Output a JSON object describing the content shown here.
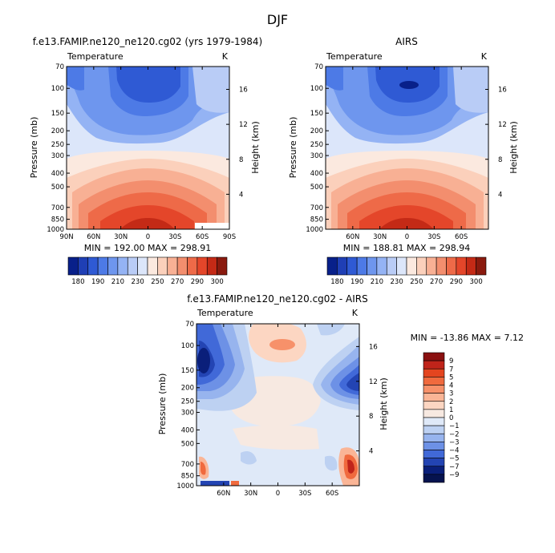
{
  "page_title": "DJF",
  "chart_data": [
    {
      "type": "heatmap",
      "title": "f.e13.FAMIP.ne120_ne120.cg02 (yrs 1979-1984)",
      "left_string": "Temperature",
      "right_string": "K",
      "xlabel": "",
      "ylabel": "Pressure (mb)",
      "y2label": "Height (km)",
      "x_ticks": [
        "90N",
        "60N",
        "30N",
        "0",
        "30S",
        "60S",
        "90S"
      ],
      "y_ticks": [
        "70",
        "100",
        "150",
        "200",
        "250",
        "300",
        "400",
        "500",
        "700",
        "850",
        "1000"
      ],
      "y2_ticks": [
        "16",
        "12",
        "8",
        "4"
      ],
      "stats": "MIN = 192.00   MAX = 298.91",
      "min": 192.0,
      "max": 298.91,
      "colorbar_labels": [
        "180",
        "190",
        "210",
        "230",
        "250",
        "270",
        "290",
        "300"
      ],
      "colorbar_levels": [
        180,
        185,
        190,
        200,
        210,
        220,
        230,
        240,
        250,
        260,
        270,
        280,
        290,
        295,
        300
      ],
      "colors": [
        "#08208a",
        "#1f3fb5",
        "#2f5ad4",
        "#4d7ae6",
        "#6e96ee",
        "#94b3f4",
        "#b9ccf6",
        "#dce6fa",
        "#fbe9df",
        "#fbd0bb",
        "#f8b094",
        "#f38e6e",
        "#ee6a48",
        "#e4462a",
        "#c42a16",
        "#8a1a0e"
      ]
    },
    {
      "type": "heatmap",
      "title": "AIRS",
      "left_string": "Temperature",
      "right_string": "K",
      "xlabel": "",
      "ylabel": "Pressure (mb)",
      "y2label": "Height (km)",
      "x_ticks": [
        "60N",
        "30N",
        "0",
        "30S",
        "60S"
      ],
      "y_ticks": [
        "70",
        "100",
        "150",
        "200",
        "250",
        "300",
        "400",
        "500",
        "700",
        "850",
        "1000"
      ],
      "y2_ticks": [
        "16",
        "12",
        "8",
        "4"
      ],
      "stats": "MIN = 188.81   MAX = 298.94",
      "min": 188.81,
      "max": 298.94,
      "colorbar_labels": [
        "180",
        "190",
        "210",
        "230",
        "250",
        "270",
        "290",
        "300"
      ]
    },
    {
      "type": "heatmap",
      "title": "f.e13.FAMIP.ne120_ne120.cg02 - AIRS",
      "left_string": "Temperature",
      "right_string": "K",
      "xlabel": "",
      "ylabel": "Pressure (mb)",
      "y2label": "Height (km)",
      "x_ticks": [
        "60N",
        "30N",
        "0",
        "30S",
        "60S"
      ],
      "y_ticks": [
        "70",
        "100",
        "150",
        "200",
        "250",
        "300",
        "400",
        "500",
        "700",
        "850",
        "1000"
      ],
      "y2_ticks": [
        "16",
        "12",
        "8",
        "4"
      ],
      "stats": "MIN = -13.86   MAX =    7.12",
      "min": -13.86,
      "max": 7.12,
      "colorbar_labels": [
        "9",
        "7",
        "5",
        "4",
        "3",
        "2",
        "1",
        "0",
        "−1",
        "−2",
        "−3",
        "−4",
        "−5",
        "−7",
        "−9"
      ],
      "diff_colors": [
        "#8a1010",
        "#c0241a",
        "#e4451f",
        "#f06a3e",
        "#f7916a",
        "#fab596",
        "#fcd6c2",
        "#f7e9e1",
        "#dfe9f8",
        "#bdd1f2",
        "#97b4ee",
        "#6d91e6",
        "#4169d8",
        "#2344b3",
        "#0a1f7a",
        "#06134f"
      ]
    }
  ]
}
